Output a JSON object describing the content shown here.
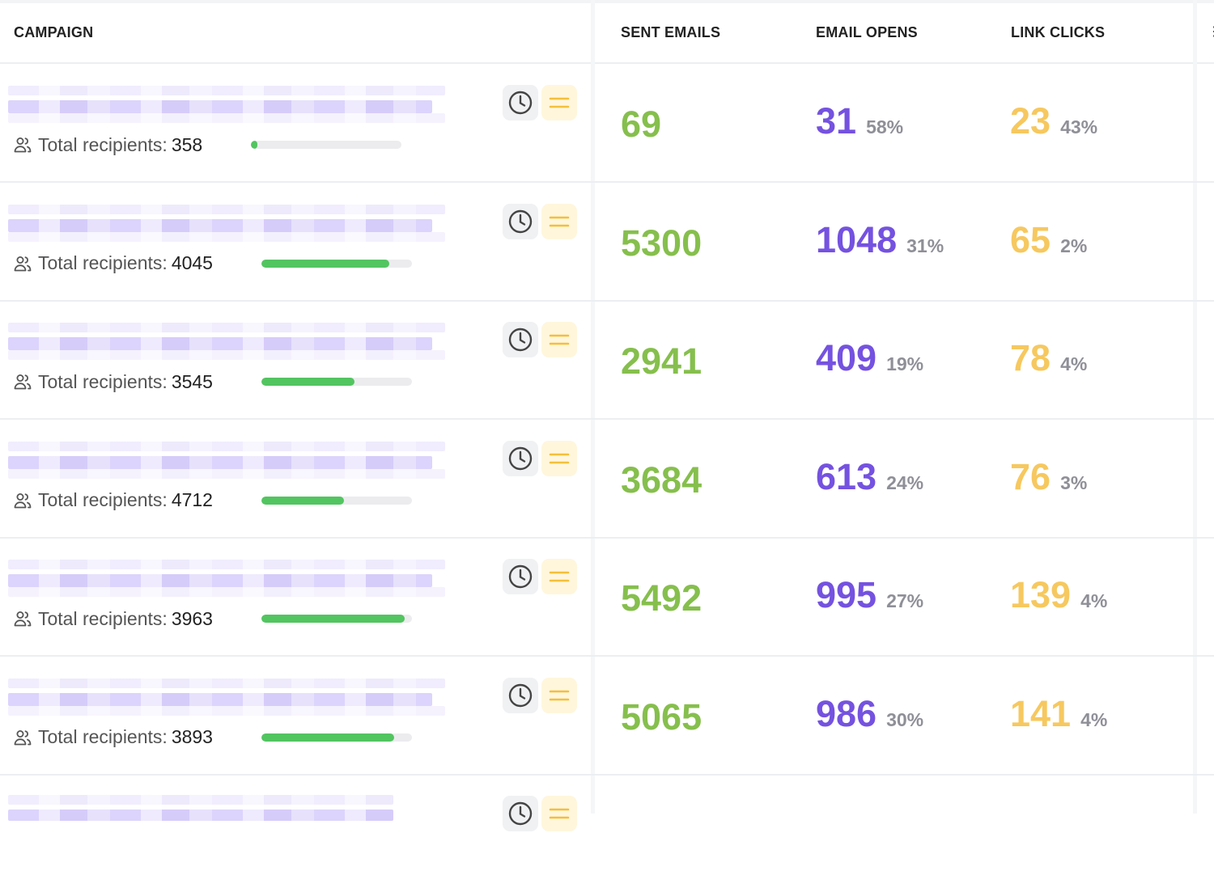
{
  "header": {
    "campaign": "CAMPAIGN",
    "sent_emails": "SENT EMAILS",
    "email_opens": "EMAIL OPENS",
    "link_clicks": "LINK CLICKS"
  },
  "recipients_label": "Total recipients:",
  "icons": {
    "recipients": "users-icon",
    "schedule": "clock-icon",
    "menu": "menu-icon"
  },
  "colors": {
    "sent": "#86bf4d",
    "opens": "#7552e0",
    "clicks": "#f6c85f",
    "progress": "#52c560"
  },
  "rows": [
    {
      "recipients": "358",
      "progress": 0.02,
      "sent": "69",
      "opens": "31",
      "opens_pct": "58%",
      "clicks": "23",
      "clicks_pct": "43%"
    },
    {
      "recipients": "4045",
      "progress": 0.85,
      "sent": "5300",
      "opens": "1048",
      "opens_pct": "31%",
      "clicks": "65",
      "clicks_pct": "2%"
    },
    {
      "recipients": "3545",
      "progress": 0.62,
      "sent": "2941",
      "opens": "409",
      "opens_pct": "19%",
      "clicks": "78",
      "clicks_pct": "4%"
    },
    {
      "recipients": "4712",
      "progress": 0.55,
      "sent": "3684",
      "opens": "613",
      "opens_pct": "24%",
      "clicks": "76",
      "clicks_pct": "3%"
    },
    {
      "recipients": "3963",
      "progress": 0.95,
      "sent": "5492",
      "opens": "995",
      "opens_pct": "27%",
      "clicks": "139",
      "clicks_pct": "4%"
    },
    {
      "recipients": "3893",
      "progress": 0.88,
      "sent": "5065",
      "opens": "986",
      "opens_pct": "30%",
      "clicks": "141",
      "clicks_pct": "4%"
    }
  ]
}
